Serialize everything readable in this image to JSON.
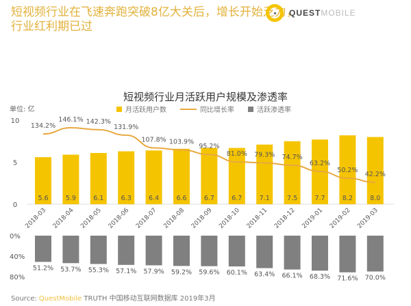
{
  "headline": "短视频行业在飞速奔跑突破8亿大关后，增长开始乏力，行业红利期已过",
  "logo": {
    "bold": "QUEST",
    "light": "MOBILE"
  },
  "chart_data": {
    "type": "bar",
    "title": "短视频行业月活跃用户规模及渗透率",
    "unit_label": "单位: 亿",
    "legend_position": "top",
    "categories": [
      "2018-03",
      "2018-04",
      "2018-05",
      "2018-06",
      "2018-07",
      "2018-08",
      "2018-09",
      "2018-10",
      "2018-11",
      "2018-12",
      "2019-01",
      "2019-02",
      "2019-03"
    ],
    "series": [
      {
        "name": "月活跃用户数",
        "type": "bar",
        "color": "#f5c400",
        "values": [
          5.6,
          5.9,
          6.1,
          6.3,
          6.4,
          6.6,
          6.7,
          6.7,
          7.1,
          7.5,
          7.7,
          8.2,
          8.0
        ],
        "labels": [
          "5.6",
          "5.9",
          "6.1",
          "6.3",
          "6.4",
          "6.6",
          "6.7",
          "6.7",
          "7.1",
          "7.5",
          "7.7",
          "8.2",
          "8.0"
        ]
      },
      {
        "name": "同比增长率",
        "type": "line",
        "color": "#e8a840",
        "values": [
          134.2,
          146.1,
          142.3,
          131.9,
          107.8,
          103.9,
          95.2,
          81.0,
          79.3,
          74.7,
          63.2,
          50.2,
          42.2
        ],
        "labels": [
          "134.2%",
          "146.1%",
          "142.3%",
          "131.9%",
          "107.8%",
          "103.9%",
          "95.2%",
          "81.0%",
          "79.3%",
          "74.7%",
          "63.2%",
          "50.2%",
          "42.2%"
        ]
      },
      {
        "name": "活跃渗透率",
        "type": "bar",
        "color": "#808080",
        "values": [
          51.2,
          53.7,
          55.3,
          57.1,
          57.9,
          59.2,
          59.6,
          60.1,
          63.4,
          66.1,
          68.3,
          71.6,
          70.0
        ],
        "labels": [
          "51.2%",
          "53.7%",
          "55.3%",
          "57.1%",
          "57.9%",
          "59.2%",
          "59.6%",
          "60.1%",
          "63.4%",
          "66.1%",
          "68.3%",
          "71.6%",
          "70.0%"
        ]
      }
    ],
    "y_top": {
      "ylim": [
        0,
        10
      ],
      "ticks": [
        "0",
        "5",
        "10"
      ]
    },
    "y_bottom": {
      "ylim": [
        0,
        80
      ],
      "inverted": true,
      "ticks": [
        "0%",
        "40%",
        "80%"
      ]
    },
    "grid": false
  },
  "source": {
    "label": "Source:",
    "brand": "QuestMobile",
    "text": "TRUTH 中国移动互联网数据库 2019年3月"
  }
}
